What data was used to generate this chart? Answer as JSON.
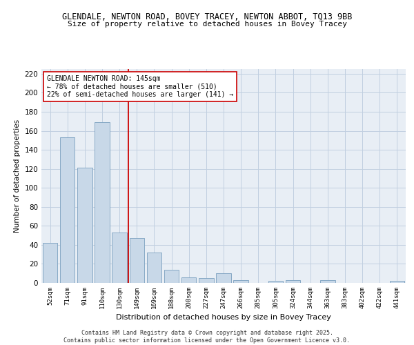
{
  "title1": "GLENDALE, NEWTON ROAD, BOVEY TRACEY, NEWTON ABBOT, TQ13 9BB",
  "title2": "Size of property relative to detached houses in Bovey Tracey",
  "xlabel": "Distribution of detached houses by size in Bovey Tracey",
  "ylabel": "Number of detached properties",
  "categories": [
    "52sqm",
    "71sqm",
    "91sqm",
    "110sqm",
    "130sqm",
    "149sqm",
    "169sqm",
    "188sqm",
    "208sqm",
    "227sqm",
    "247sqm",
    "266sqm",
    "285sqm",
    "305sqm",
    "324sqm",
    "344sqm",
    "363sqm",
    "383sqm",
    "402sqm",
    "422sqm",
    "441sqm"
  ],
  "values": [
    42,
    153,
    121,
    169,
    53,
    47,
    32,
    14,
    6,
    5,
    10,
    3,
    0,
    2,
    3,
    0,
    3,
    0,
    0,
    0,
    2
  ],
  "bar_color": "#c8d8e8",
  "bar_edge_color": "#7aa0bf",
  "vline_idx": 4.5,
  "vline_color": "#cc0000",
  "annotation_box_text": "GLENDALE NEWTON ROAD: 145sqm\n← 78% of detached houses are smaller (510)\n22% of semi-detached houses are larger (141) →",
  "annotation_box_facecolor": "#ffffff",
  "annotation_box_edgecolor": "#cc0000",
  "ylim": [
    0,
    225
  ],
  "yticks": [
    0,
    20,
    40,
    60,
    80,
    100,
    120,
    140,
    160,
    180,
    200,
    220
  ],
  "grid_color": "#c0cfe0",
  "background_color": "#e8eef5",
  "footnote": "Contains HM Land Registry data © Crown copyright and database right 2025.\nContains public sector information licensed under the Open Government Licence v3.0."
}
